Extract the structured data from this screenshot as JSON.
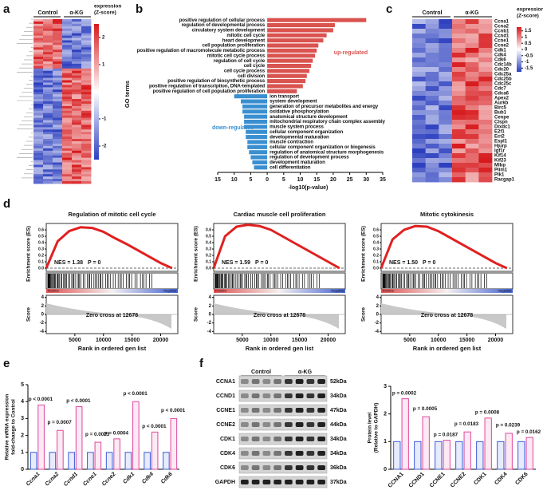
{
  "panel_labels": [
    "a",
    "b",
    "c",
    "d",
    "e",
    "f"
  ],
  "chart_data": [
    {
      "type": "heatmap",
      "columns": [
        "Control",
        "α-KG"
      ],
      "colorbar_title": [
        "expression",
        "(Z-score)"
      ],
      "colorbar_lim": [
        -2.5,
        2.5
      ],
      "colorbar_ticks": [
        2,
        1,
        -1,
        -2
      ]
    },
    {
      "type": "bar",
      "orientation": "horizontal",
      "ylabel": "GO terms",
      "xlabel": "-log10(p-value)",
      "categories": [
        "positive regulation of cellular process",
        "regulation of developmental process",
        "circulatory system development",
        "mitotic cell cycle",
        "heart development",
        "cell population proliferation",
        "positive regulation of macromolecule metabolic process",
        "mitotic cell cycle process",
        "regulation of cell cycle",
        "cell cycle",
        "cell cycle process",
        "cell division",
        "positive regulation of biosynthetic process",
        "positive regulation of transcription, DNA-templated",
        "positive regulation of cell population proliferation",
        "ion transport",
        "system development",
        "generation of precursor metabolites and energy",
        "oxidative phosphorylation",
        "anatomical structure development",
        "mitochondrial respiratory chain complex assembly",
        "muscle system process",
        "cellular component organization",
        "developmental maturation",
        "muscle contraction",
        "cellular component organization or biogenesis",
        "regulation of anatomical structure morphogenesis",
        "regulation of development process",
        "development maturation",
        "cell differentiation"
      ],
      "series": [
        {
          "name": "up-regulated",
          "color": "#d9534f",
          "values": [
            30,
            20.5,
            20,
            18,
            17,
            15.5,
            15,
            14.5,
            13.8,
            13.3,
            12.8,
            12,
            11.6,
            10.8,
            9,
            null,
            null,
            null,
            null,
            null,
            null,
            null,
            null,
            null,
            null,
            null,
            null,
            null,
            null,
            null
          ]
        },
        {
          "name": "down-regulated",
          "color": "#3a8fd0",
          "values": [
            null,
            null,
            null,
            null,
            null,
            null,
            null,
            null,
            null,
            null,
            null,
            null,
            null,
            null,
            null,
            -10,
            -8,
            -7.5,
            -7.5,
            -7,
            -7,
            -7,
            -6.5,
            -6.5,
            -6,
            -6,
            -5.5,
            -5,
            -4.5,
            -4
          ]
        }
      ],
      "xlim": [
        -15,
        35
      ],
      "xticks": [
        {
          "value": -15,
          "label": "15"
        },
        {
          "value": -10,
          "label": "10"
        },
        {
          "value": -5,
          "label": "5"
        },
        0,
        5,
        10,
        15,
        20,
        25,
        30,
        35
      ]
    },
    {
      "type": "heatmap",
      "columns": [
        "Control",
        "α-KG"
      ],
      "rows": [
        "Ccna1",
        "Ccna2",
        "Ccnb1",
        "Ccnd1",
        "Ccne1",
        "Ccne2",
        "Cdk1",
        "Cdk4",
        "Cdk6",
        "Cdc14b",
        "Cdc20",
        "Cdc25a",
        "Cdc25b",
        "Cdc25c",
        "Cdc7",
        "Cdca6",
        "Apex2",
        "Aurkb",
        "Birc5",
        "Bub1",
        "Cenpe",
        "Clspn",
        "Dixdc1",
        "E2f1",
        "Ect2",
        "Espl1",
        "Hjurp",
        "Igf1r",
        "Kif14",
        "Kif23",
        "Mlbp",
        "Plim1",
        "Plk1",
        "Racgap1"
      ],
      "colorbar_title": [
        "expression",
        "(Z-score)"
      ],
      "colorbar_lim": [
        -1.8,
        1.8
      ],
      "colorbar_ticks": [
        1.5,
        1,
        0.5,
        0,
        -0.5,
        -1,
        -1.5
      ]
    },
    {
      "type": "gsea",
      "title": "Regulation of mitotic cell cycle",
      "nes": "NES = 1.38",
      "p": "P = 0",
      "ylabel": "Enrichment score (ES)",
      "score_label": "Score",
      "zero_cross": "Zero cross at 12678",
      "xlabel": "Rank in ordered gen list",
      "positive": "Positive",
      "negative": "Negative",
      "x": [
        0,
        2000,
        4000,
        6000,
        8000,
        10000,
        12000,
        14000,
        16000,
        18000,
        20000,
        22000
      ],
      "values": [
        0,
        0.42,
        0.58,
        0.64,
        0.63,
        0.57,
        0.47,
        0.38,
        0.28,
        0.18,
        0.08,
        0
      ],
      "color": "#e02020",
      "xlim": [
        0,
        23000
      ],
      "xticks": [
        5000,
        10000,
        15000,
        20000
      ],
      "ylim": [
        -0.05,
        0.7
      ],
      "yticks": [
        {
          "value": 0,
          "label": "0.0"
        },
        0.1,
        0.2,
        0.3,
        0.4,
        0.5,
        0.6
      ],
      "score_lim": [
        -4.5,
        4.5
      ],
      "score_ticks": [
        4,
        2,
        0,
        -2,
        -4
      ]
    },
    {
      "type": "gsea",
      "title": "Cardiac muscle cell proliferation",
      "nes": "NES = 1.59",
      "p": "P = 0",
      "ylabel": "Enrichment score (ES)",
      "score_label": "Score",
      "zero_cross": "Zero cross at 12678",
      "xlabel": "Rank in ordered gen list",
      "positive": "Positive",
      "negative": "Negative",
      "x": [
        0,
        2000,
        4000,
        6000,
        8000,
        10000,
        12000,
        14000,
        16000,
        18000,
        20000,
        22000
      ],
      "values": [
        0,
        0.5,
        0.65,
        0.68,
        0.66,
        0.6,
        0.5,
        0.4,
        0.3,
        0.2,
        0.1,
        0
      ],
      "color": "#e02020",
      "xlim": [
        0,
        23000
      ],
      "xticks": [
        5000,
        10000,
        15000,
        20000
      ],
      "ylim": [
        -0.05,
        0.7
      ],
      "yticks": [
        {
          "value": 0,
          "label": "0.0"
        },
        0.1,
        0.2,
        0.3,
        0.4,
        0.5,
        0.6
      ],
      "score_lim": [
        -4.5,
        4.5
      ],
      "score_ticks": [
        4,
        2,
        0,
        -2,
        -4
      ]
    },
    {
      "type": "gsea",
      "title": "Mitotic cytokinesis",
      "nes": "NES = 1.50",
      "p": "P = 0",
      "ylabel": "Enrichment score (ES)",
      "score_label": "Score",
      "zero_cross": "Zero cross at 12678",
      "xlabel": "Rank in ordered gen list",
      "positive": "Positive",
      "negative": "Negative",
      "x": [
        0,
        2000,
        4000,
        6000,
        8000,
        10000,
        12000,
        14000,
        16000,
        18000,
        20000,
        22000
      ],
      "values": [
        0,
        0.45,
        0.6,
        0.66,
        0.65,
        0.58,
        0.48,
        0.38,
        0.28,
        0.18,
        0.08,
        0
      ],
      "color": "#e02020",
      "xlim": [
        0,
        23000
      ],
      "xticks": [
        5000,
        10000,
        15000,
        20000
      ],
      "ylim": [
        -0.05,
        0.7
      ],
      "yticks": [
        {
          "value": 0,
          "label": "0.0"
        },
        0.1,
        0.2,
        0.3,
        0.4,
        0.5,
        0.6
      ],
      "score_lim": [
        -4.5,
        4.5
      ],
      "score_ticks": [
        4,
        2,
        0,
        -2,
        -4
      ]
    },
    {
      "type": "bar",
      "ylabel": [
        "Relative mRNA expression",
        "fold-change to Control"
      ],
      "categories": [
        "Ccna1",
        "Ccna2",
        "Ccnd1",
        "Ccne1",
        "Ccne2",
        "Cdk1",
        "Cdk4",
        "Cdk6"
      ],
      "series": [
        {
          "color": "#3b5bdb",
          "values": [
            1,
            1,
            1,
            1,
            1,
            1,
            1,
            1
          ]
        },
        {
          "color": "#e0479e",
          "values": [
            3.8,
            2.3,
            3.7,
            1.6,
            1.8,
            4.0,
            2.2,
            3.0
          ]
        }
      ],
      "ylim": [
        0,
        5
      ],
      "yticks": [
        0,
        1,
        2,
        3,
        4,
        5
      ],
      "annotations": [
        "p < 0.0001",
        "p = 0.0007",
        "p < 0.0001",
        "p = 0.0023",
        "p = 0.0004",
        "p < 0.0001",
        "p < 0.0001",
        "p < 0.0001"
      ]
    },
    {
      "type": "blot",
      "groups": [
        "Control",
        "α-KG"
      ],
      "proteins": [
        "CCNA1",
        "CCND1",
        "CCNE1",
        "CCNE2",
        "CDK1",
        "CDK4",
        "CDK6",
        "GAPDH"
      ],
      "sizes": [
        "52kDa",
        "34kDa",
        "47kDa",
        "44kDa",
        "34kDa",
        "34kDa",
        "36kDa",
        "37kDa"
      ]
    },
    {
      "type": "bar",
      "ylabel": [
        "Protein level",
        "(Relative to GAPDH)"
      ],
      "categories": [
        "CCNA1",
        "CCND1",
        "CCNE1",
        "CCNE2",
        "CDK1",
        "CDK4",
        "CDK6"
      ],
      "series": [
        {
          "color": "#3b5bdb",
          "values": [
            1,
            1,
            1,
            1,
            1,
            1,
            1
          ]
        },
        {
          "color": "#e0479e",
          "values": [
            2.55,
            1.9,
            1.05,
            1.35,
            1.85,
            1.3,
            1.15
          ]
        }
      ],
      "ylim": [
        0,
        3
      ],
      "yticks": [
        0,
        1,
        2,
        3
      ],
      "annotations": [
        "p = 0.0002",
        "p = 0.0005",
        "p = 0.0187",
        "p = 0.0183",
        "p = 0.0008",
        "p = 0.0239",
        "p = 0.0162"
      ]
    }
  ]
}
